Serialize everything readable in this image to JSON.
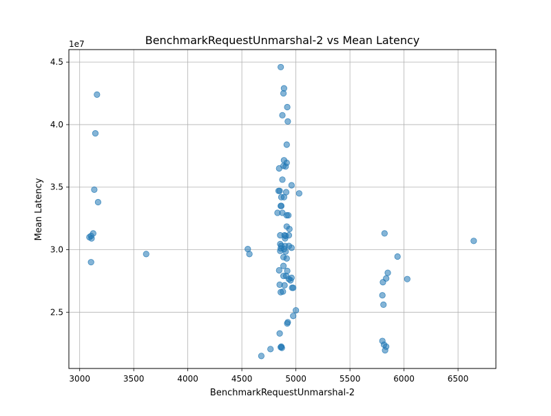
{
  "chart_data": {
    "type": "scatter",
    "title": "BenchmarkRequestUnmarshal-2 vs Mean Latency",
    "xlabel": "BenchmarkRequestUnmarshal-2",
    "ylabel": "Mean Latency",
    "y_offset_label": "1e7",
    "xlim": [
      2900,
      6850
    ],
    "ylim": [
      20500000.0,
      46000000.0
    ],
    "x_ticks": [
      3000,
      3500,
      4000,
      4500,
      5000,
      5500,
      6000,
      6500
    ],
    "y_ticks": [
      25000000.0,
      30000000.0,
      35000000.0,
      40000000.0,
      45000000.0
    ],
    "x_tick_labels": [
      "3000",
      "3500",
      "4000",
      "4500",
      "5000",
      "5500",
      "6000",
      "6500"
    ],
    "y_tick_labels": [
      "2.5",
      "3.0",
      "3.5",
      "4.0",
      "4.5"
    ],
    "grid": true,
    "marker_color": "#1f77b4",
    "marker_alpha": 0.55,
    "points": [
      [
        3160,
        42400000
      ],
      [
        3145,
        39300000
      ],
      [
        3135,
        34800000
      ],
      [
        3170,
        33800000
      ],
      [
        3125,
        31300000
      ],
      [
        3090,
        31000000
      ],
      [
        3105,
        31100000
      ],
      [
        3110,
        30900000
      ],
      [
        3105,
        29000000
      ],
      [
        3615,
        29650000
      ],
      [
        4555,
        30050000
      ],
      [
        4570,
        29650000
      ],
      [
        4680,
        21500000
      ],
      [
        4765,
        22050000
      ],
      [
        4860,
        44600000
      ],
      [
        4890,
        42900000
      ],
      [
        4885,
        42500000
      ],
      [
        4920,
        41400000
      ],
      [
        4875,
        40750000
      ],
      [
        4925,
        40250000
      ],
      [
        4915,
        38400000
      ],
      [
        4890,
        37150000
      ],
      [
        4915,
        36950000
      ],
      [
        4885,
        36700000
      ],
      [
        4905,
        36650000
      ],
      [
        4845,
        36500000
      ],
      [
        4875,
        35600000
      ],
      [
        4960,
        35150000
      ],
      [
        4840,
        34700000
      ],
      [
        4850,
        34700000
      ],
      [
        4910,
        34600000
      ],
      [
        5030,
        34500000
      ],
      [
        4865,
        34200000
      ],
      [
        4890,
        34200000
      ],
      [
        4865,
        33500000
      ],
      [
        4860,
        33500000
      ],
      [
        4830,
        32950000
      ],
      [
        4875,
        32950000
      ],
      [
        4915,
        32750000
      ],
      [
        4930,
        32750000
      ],
      [
        4915,
        31850000
      ],
      [
        4940,
        31650000
      ],
      [
        4855,
        31150000
      ],
      [
        4895,
        31150000
      ],
      [
        4905,
        31100000
      ],
      [
        4935,
        31150000
      ],
      [
        4900,
        30900000
      ],
      [
        4855,
        30450000
      ],
      [
        4865,
        30300000
      ],
      [
        4900,
        30300000
      ],
      [
        4935,
        30300000
      ],
      [
        4860,
        30100000
      ],
      [
        4890,
        30050000
      ],
      [
        4960,
        30150000
      ],
      [
        4855,
        29900000
      ],
      [
        4905,
        29850000
      ],
      [
        4885,
        29400000
      ],
      [
        4915,
        29300000
      ],
      [
        4885,
        28700000
      ],
      [
        4845,
        28350000
      ],
      [
        4920,
        28300000
      ],
      [
        4885,
        27900000
      ],
      [
        4910,
        27900000
      ],
      [
        4935,
        27650000
      ],
      [
        4950,
        27550000
      ],
      [
        4960,
        27750000
      ],
      [
        4850,
        27200000
      ],
      [
        4895,
        27150000
      ],
      [
        4965,
        26950000
      ],
      [
        4975,
        26950000
      ],
      [
        4860,
        26600000
      ],
      [
        4880,
        26650000
      ],
      [
        5000,
        25150000
      ],
      [
        4975,
        24700000
      ],
      [
        4925,
        24200000
      ],
      [
        4920,
        24100000
      ],
      [
        4850,
        23300000
      ],
      [
        4865,
        22250000
      ],
      [
        4870,
        22150000
      ],
      [
        4860,
        22200000
      ],
      [
        5820,
        31300000
      ],
      [
        5940,
        29450000
      ],
      [
        5850,
        28150000
      ],
      [
        5835,
        27700000
      ],
      [
        6030,
        27650000
      ],
      [
        5805,
        27400000
      ],
      [
        5800,
        26350000
      ],
      [
        5810,
        25600000
      ],
      [
        5800,
        22700000
      ],
      [
        5815,
        22400000
      ],
      [
        5835,
        22250000
      ],
      [
        5825,
        21950000
      ],
      [
        6645,
        30700000
      ]
    ]
  }
}
